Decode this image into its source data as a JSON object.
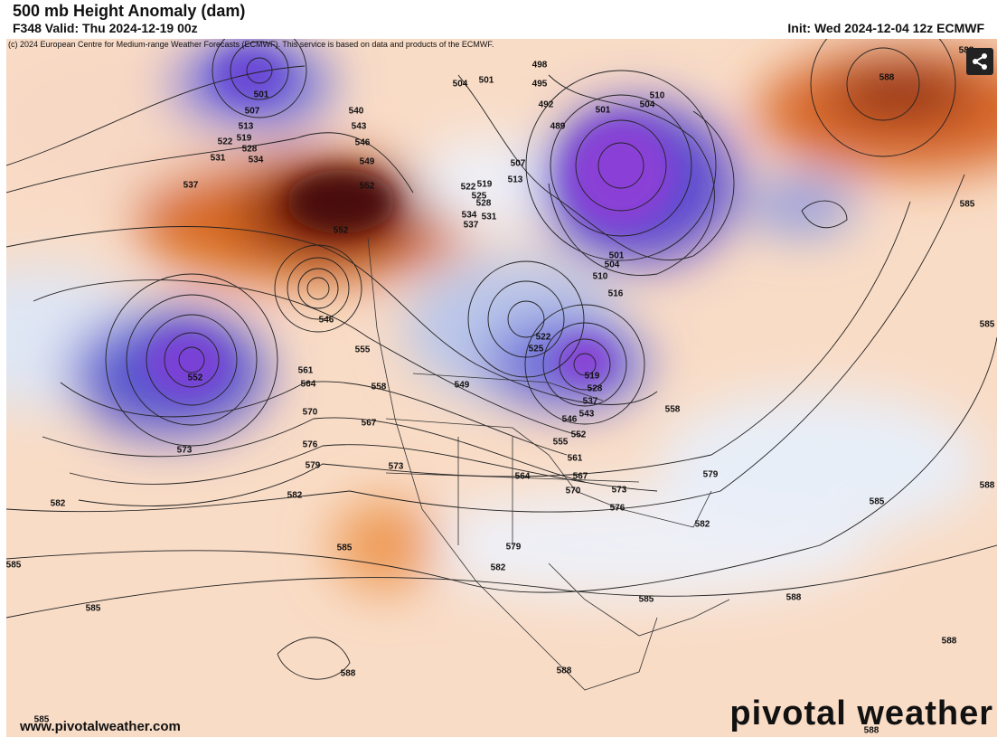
{
  "header": {
    "title": "500 mb Height Anomaly (dam)",
    "valid": "F348 Valid: Thu 2024-12-19 00z",
    "init": "Init: Wed 2024-12-04 12z ECMWF",
    "copyright": "(c) 2024 European Centre for Medium-range Weather Forecasts (ECMWF). This service is based on data and products of the ECMWF."
  },
  "contour_labels": [
    "501",
    "507",
    "513",
    "519",
    "522",
    "528",
    "531",
    "534",
    "537",
    "540",
    "543",
    "546",
    "549",
    "552",
    "552",
    "546",
    "555",
    "561",
    "564",
    "558",
    "549",
    "552",
    "570",
    "567",
    "573",
    "576",
    "579",
    "573",
    "582",
    "582",
    "585",
    "585",
    "585",
    "588",
    "585",
    "504",
    "501",
    "498",
    "495",
    "492",
    "489",
    "501",
    "504",
    "510",
    "507",
    "513",
    "519",
    "522",
    "525",
    "528",
    "531",
    "534",
    "537",
    "501",
    "504",
    "510",
    "516",
    "522",
    "525",
    "519",
    "528",
    "537",
    "543",
    "546",
    "552",
    "555",
    "561",
    "564",
    "567",
    "570",
    "573",
    "576",
    "579",
    "582",
    "579",
    "558",
    "582",
    "585",
    "588",
    "588",
    "585",
    "588",
    "588",
    "585",
    "585",
    "588",
    "588",
    "588"
  ],
  "footer": {
    "website": "www.pivotalweather.com",
    "logo": "pivotal weather"
  }
}
